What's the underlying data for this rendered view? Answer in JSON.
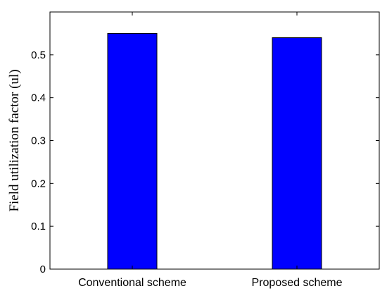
{
  "chart_data": {
    "type": "bar",
    "categories": [
      "Conventional scheme",
      "Proposed scheme"
    ],
    "values": [
      0.55,
      0.54
    ],
    "title": "",
    "xlabel": "",
    "ylabel": "Field utilization factor (ul)",
    "ylim": [
      0,
      0.6
    ],
    "yticks": [
      0,
      0.1,
      0.2,
      0.3,
      0.4,
      0.5
    ],
    "ytick_labels": [
      "0",
      "0.1",
      "0.2",
      "0.3",
      "0.4",
      "0.5"
    ],
    "bar_color": "#0000ff",
    "bar_edge_color": "#000000",
    "grid": false,
    "legend": false
  }
}
